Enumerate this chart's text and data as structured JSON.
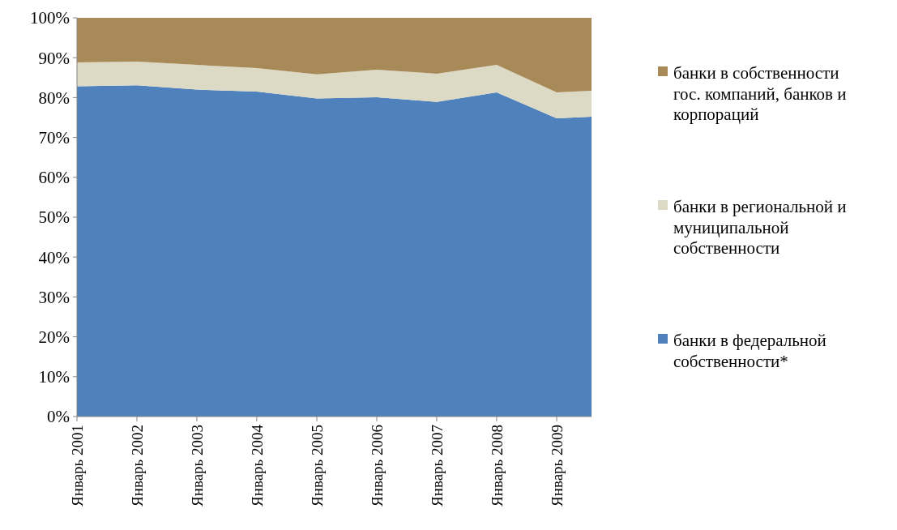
{
  "chart_data": {
    "type": "area",
    "stacked": true,
    "x": [
      "2001-01",
      "2002-01",
      "2003-01",
      "2004-01",
      "2005-01",
      "2006-01",
      "2007-01",
      "2008-01",
      "2009-01",
      "2009-08"
    ],
    "series": [
      {
        "name": "банки в федеральной собственности*",
        "color": "#4f81bd",
        "values": [
          82.8,
          83.1,
          82.0,
          81.5,
          79.8,
          80.1,
          78.9,
          81.3,
          74.8,
          75.2
        ]
      },
      {
        "name": "банки в региональной и муниципальной собственности",
        "color": "#dcd9c4",
        "values": [
          6.0,
          5.9,
          6.2,
          5.9,
          6.0,
          6.9,
          7.1,
          6.9,
          6.5,
          6.5
        ]
      },
      {
        "name": "банки в собственности гос. компаний, банков и корпораций",
        "color": "#a88a58",
        "values": [
          11.2,
          11.0,
          11.8,
          12.6,
          14.2,
          13.0,
          14.0,
          11.8,
          18.7,
          18.3
        ]
      }
    ],
    "xlim": [
      "2001-01",
      "2009-08"
    ],
    "xticks": [
      {
        "value": "2001-01",
        "label": "Январь 2001"
      },
      {
        "value": "2002-01",
        "label": "Январь 2002"
      },
      {
        "value": "2003-01",
        "label": "Январь 2003"
      },
      {
        "value": "2004-01",
        "label": "Январь 2004"
      },
      {
        "value": "2005-01",
        "label": "Январь 2005"
      },
      {
        "value": "2006-01",
        "label": "Январь 2006"
      },
      {
        "value": "2007-01",
        "label": "Январь 2007"
      },
      {
        "value": "2008-01",
        "label": "Январь 2008"
      },
      {
        "value": "2009-01",
        "label": "Январь 2009"
      }
    ],
    "ylim": [
      0,
      100
    ],
    "yticks": [
      {
        "value": 0,
        "label": "0%"
      },
      {
        "value": 10,
        "label": "10%"
      },
      {
        "value": 20,
        "label": "20%"
      },
      {
        "value": 30,
        "label": "30%"
      },
      {
        "value": 40,
        "label": "40%"
      },
      {
        "value": 50,
        "label": "50%"
      },
      {
        "value": 60,
        "label": "60%"
      },
      {
        "value": 70,
        "label": "70%"
      },
      {
        "value": 80,
        "label": "80%"
      },
      {
        "value": 90,
        "label": "90%"
      },
      {
        "value": 100,
        "label": "100%"
      }
    ],
    "legend": "right",
    "grid": false
  }
}
